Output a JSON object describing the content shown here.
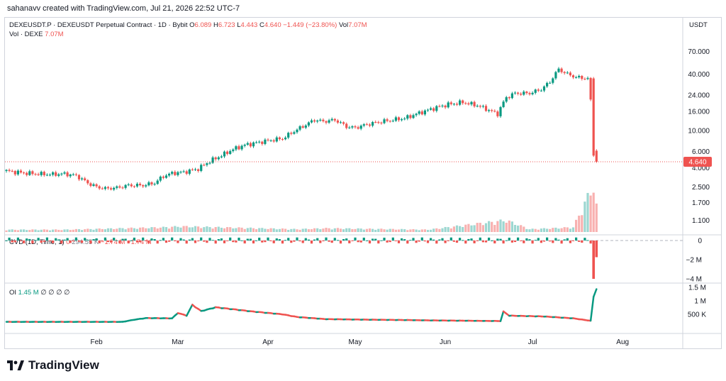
{
  "credit": "sahanavv created with TradingView.com, Jul 21, 2026 22:52 UTC-7",
  "legend": {
    "symbol": "DEXEUSDT.P · DEXEUSDT Perpetual Contract · 1D · Bybit",
    "o_label": "O",
    "o": "6.089",
    "h_label": "H",
    "h": "6.723",
    "l_label": "L",
    "l": "4.443",
    "c_label": "C",
    "c": "4.640",
    "change": "−1.449 (−23.80%)",
    "vol_label": "Vol",
    "vol": "7.07M",
    "vol_line_label": "Vol · DEXE",
    "vol_line_value": "7.07M"
  },
  "cvd_legend": {
    "label": "CVD (1D, Time, 1)",
    "v1": "0",
    "v2": "294.55 K",
    "v3": "−1.74 M",
    "v4": "−1.74 M"
  },
  "oi_legend": {
    "label": "OI",
    "value": "1.45 M",
    "na": "∅ ∅ ∅ ∅"
  },
  "price_axis_unit": "USDT",
  "last_price_label": "4.640",
  "logo_text": "TradingView",
  "colors": {
    "up": "#089981",
    "down": "#ef5350",
    "up_vol": "#26a69a",
    "down_vol": "#ef5350"
  },
  "chart_data": [
    {
      "type": "candlestick",
      "title": "DEXEUSDT Perpetual Contract",
      "y_scale": "log",
      "y_ticks": [
        "70.000",
        "40.000",
        "24.000",
        "16.000",
        "10.000",
        "6.000",
        "4.000",
        "2.500",
        "1.700",
        "1.100"
      ],
      "y_tick_values": [
        70,
        40,
        24,
        16,
        10,
        6,
        4,
        2.5,
        1.7,
        1.1
      ],
      "x_ticks": [
        "Feb",
        "Mar",
        "Apr",
        "May",
        "Jun",
        "Jul",
        "Aug"
      ],
      "x_tick_days": [
        31,
        59,
        90,
        120,
        151,
        181,
        212
      ],
      "last_close": 4.64,
      "close_path": [
        [
          0,
          3.7
        ],
        [
          5,
          3.55
        ],
        [
          10,
          3.45
        ],
        [
          15,
          3.4
        ],
        [
          20,
          3.45
        ],
        [
          24,
          3.3
        ],
        [
          28,
          2.75
        ],
        [
          31,
          2.5
        ],
        [
          34,
          2.4
        ],
        [
          38,
          2.45
        ],
        [
          42,
          2.6
        ],
        [
          47,
          2.6
        ],
        [
          51,
          2.75
        ],
        [
          54,
          3.25
        ],
        [
          57,
          3.5
        ],
        [
          61,
          3.6
        ],
        [
          66,
          3.9
        ],
        [
          70,
          4.7
        ],
        [
          74,
          5.4
        ],
        [
          78,
          6.3
        ],
        [
          82,
          7.0
        ],
        [
          86,
          7.4
        ],
        [
          91,
          7.9
        ],
        [
          95,
          8.2
        ],
        [
          99,
          9.8
        ],
        [
          103,
          11.5
        ],
        [
          106,
          13.0
        ],
        [
          109,
          12.5
        ],
        [
          113,
          13.0
        ],
        [
          117,
          11.0
        ],
        [
          120,
          10.7
        ],
        [
          124,
          11.6
        ],
        [
          128,
          12.3
        ],
        [
          133,
          13.0
        ],
        [
          137,
          13.5
        ],
        [
          141,
          15.0
        ],
        [
          145,
          16.5
        ],
        [
          149,
          18.0
        ],
        [
          152,
          19.0
        ],
        [
          157,
          20.0
        ],
        [
          162,
          18.5
        ],
        [
          165,
          17.0
        ],
        [
          169,
          15.0
        ],
        [
          172,
          22.5
        ],
        [
          175,
          25.0
        ],
        [
          180,
          25.0
        ],
        [
          184,
          27.5
        ],
        [
          187,
          33.0
        ],
        [
          190,
          45.0
        ],
        [
          193,
          40.0
        ],
        [
          196,
          37.0
        ],
        [
          200,
          36.0
        ],
        [
          202,
          5.4
        ],
        [
          203,
          4.64
        ]
      ]
    },
    {
      "type": "bar",
      "title": "Vol · DEXE",
      "note": "volume bars, last bar 7.07M",
      "relative_path": [
        [
          0,
          0.05
        ],
        [
          20,
          0.05
        ],
        [
          54,
          0.1
        ],
        [
          60,
          0.12
        ],
        [
          100,
          0.06
        ],
        [
          110,
          0.08
        ],
        [
          145,
          0.05
        ],
        [
          172,
          0.25
        ],
        [
          180,
          0.06
        ],
        [
          195,
          0.1
        ],
        [
          202,
          1.0
        ],
        [
          203,
          0.55
        ]
      ]
    },
    {
      "type": "bar",
      "title": "CVD (1D, Time, 1)",
      "y_ticks": [
        "0",
        "−2 M",
        "−4 M"
      ],
      "y_tick_values": [
        0,
        -2,
        -4
      ],
      "unit": "M",
      "values_tail": [
        [
          202,
          -4.0
        ],
        [
          203,
          -1.74
        ]
      ]
    },
    {
      "type": "line",
      "title": "OI",
      "y_ticks": [
        "1.5 M",
        "1 M",
        "500 K"
      ],
      "y_tick_values": [
        1.5,
        1.0,
        0.5
      ],
      "unit": "M",
      "path": [
        [
          0,
          0.22
        ],
        [
          40,
          0.22
        ],
        [
          44,
          0.3
        ],
        [
          48,
          0.36
        ],
        [
          57,
          0.35
        ],
        [
          59,
          0.55
        ],
        [
          62,
          0.45
        ],
        [
          64,
          0.85
        ],
        [
          67,
          0.62
        ],
        [
          70,
          0.7
        ],
        [
          72,
          0.76
        ],
        [
          85,
          0.6
        ],
        [
          95,
          0.5
        ],
        [
          100,
          0.4
        ],
        [
          110,
          0.32
        ],
        [
          150,
          0.27
        ],
        [
          170,
          0.25
        ],
        [
          171,
          0.6
        ],
        [
          173,
          0.45
        ],
        [
          185,
          0.42
        ],
        [
          195,
          0.35
        ],
        [
          201,
          0.26
        ],
        [
          202,
          1.15
        ],
        [
          203,
          1.45
        ]
      ]
    }
  ]
}
